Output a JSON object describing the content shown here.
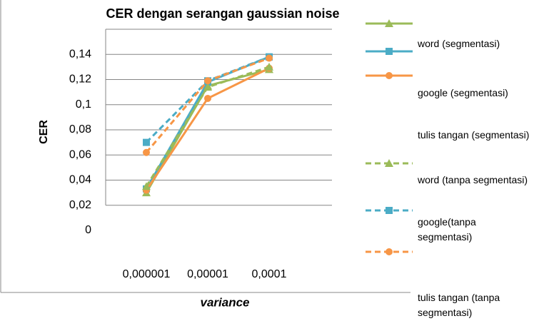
{
  "chart_data": {
    "type": "line",
    "title": "CER dengan serangan gaussian noise",
    "x_label": "variance",
    "y_label": "CER",
    "categories": [
      "0,000001",
      "0,00001",
      "0,0001"
    ],
    "ylim": [
      0,
      0.16
    ],
    "yticks": [
      0,
      {
        "value": 0.02,
        "label": "0,02"
      },
      {
        "value": 0.04,
        "label": "0,04"
      },
      {
        "value": 0.06,
        "label": "0,06"
      },
      {
        "value": 0.08,
        "label": "0,08"
      },
      {
        "value": 0.1,
        "label": "0,1"
      },
      {
        "value": 0.12,
        "label": "0,12"
      },
      {
        "value": 0.14,
        "label": "0,14"
      }
    ],
    "grid": true,
    "series": [
      {
        "name": "word (segmentasi)",
        "color": "#9bbb59",
        "dashed": false,
        "marker": "triangle",
        "values": [
          0.03,
          0.115,
          0.128
        ]
      },
      {
        "name": "google (segmentasi)",
        "color": "#4bacc6",
        "dashed": false,
        "marker": "square",
        "values": [
          0.033,
          0.118,
          0.138
        ]
      },
      {
        "name": "tulis tangan (segmentasi)",
        "color": "#f79646",
        "dashed": false,
        "marker": "circle",
        "values": [
          0.032,
          0.105,
          0.129
        ]
      },
      {
        "name": "word (tanpa segmentasi)",
        "color": "#9bbb59",
        "dashed": true,
        "marker": "triangle",
        "values": [
          0.035,
          0.114,
          0.13
        ]
      },
      {
        "name": "google(tanpa segmentasi)",
        "color": "#4bacc6",
        "dashed": true,
        "marker": "square",
        "values": [
          0.07,
          0.119,
          0.138
        ]
      },
      {
        "name": "tulis tangan (tanpa segmentasi)",
        "color": "#f79646",
        "dashed": true,
        "marker": "circle",
        "values": [
          0.062,
          0.119,
          0.137
        ]
      }
    ]
  }
}
